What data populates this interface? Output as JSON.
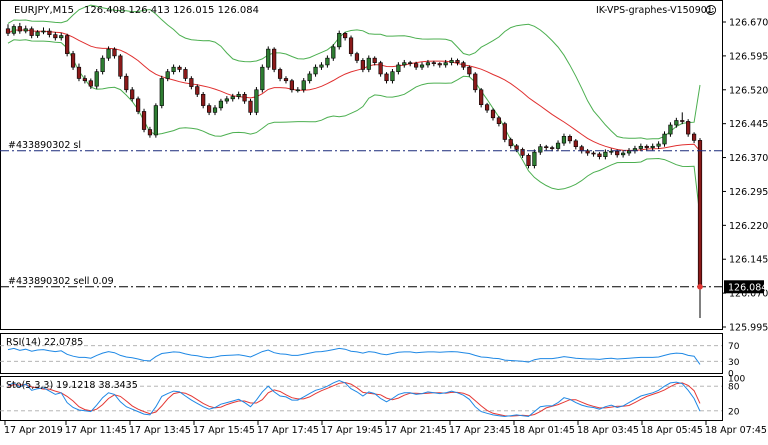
{
  "header": {
    "symbol_tf": "EURJPY,M15",
    "ohlc": "126.408 126.413 126.015 126.084",
    "watermark": "IK-VPS-graphes-V150901"
  },
  "main_pane": {
    "price_labels": [
      "126.670",
      "126.595",
      "126.520",
      "126.445",
      "126.370",
      "126.295",
      "126.220",
      "126.145",
      "126.070",
      "125.995"
    ],
    "price_values": [
      126.67,
      126.595,
      126.52,
      126.445,
      126.37,
      126.295,
      126.22,
      126.145,
      126.07,
      125.995
    ],
    "current_price": "126.084",
    "sl_label": "#433890302 sl",
    "sl_price": 126.385,
    "order_label": "#433890302 sell 0.09",
    "order_price": 126.084
  },
  "rsi_pane": {
    "title": "RSI(14) 22.0785",
    "levels": [
      "70",
      "30",
      "0"
    ]
  },
  "stoch_pane": {
    "title": "Sto(5,3,3) 19.1218 38.3435",
    "levels": [
      "100",
      "80",
      "20"
    ]
  },
  "time_axis": {
    "labels": [
      "17 Apr 2019",
      "17 Apr 11:45",
      "17 Apr 13:45",
      "17 Apr 15:45",
      "17 Apr 17:45",
      "17 Apr 19:45",
      "17 Apr 21:45",
      "17 Apr 23:45",
      "18 Apr 01:45",
      "18 Apr 03:45",
      "18 Apr 05:45",
      "18 Apr 07:45"
    ]
  },
  "colors": {
    "bull": "#2e7d32",
    "bear": "#8b1a1a",
    "ma": "#e03030",
    "bands": "#4caf50",
    "rsi": "#1e88e5",
    "stoch_main": "#1e88e5",
    "stoch_signal": "#e53935"
  },
  "chart_data": {
    "type": "candlestick",
    "opens": [
      126.655,
      126.645,
      126.66,
      126.65,
      126.655,
      126.64,
      126.648,
      126.65,
      126.642,
      126.635,
      126.64,
      126.6,
      126.57,
      126.545,
      126.54,
      126.528,
      126.56,
      126.59,
      126.61,
      126.595,
      126.55,
      126.52,
      126.5,
      126.472,
      126.432,
      126.42,
      126.485,
      126.545,
      126.56,
      126.57,
      126.565,
      126.545,
      126.527,
      126.51,
      126.485,
      126.47,
      126.48,
      126.495,
      126.5,
      126.505,
      126.51,
      126.495,
      126.47,
      126.52,
      126.57,
      126.61,
      126.565,
      126.545,
      126.54,
      126.52,
      126.52,
      126.54,
      126.555,
      126.57,
      126.575,
      126.59,
      126.615,
      126.645,
      126.635,
      126.6,
      126.585,
      126.565,
      126.59,
      126.58,
      126.555,
      126.54,
      126.56,
      126.575,
      126.58,
      126.578,
      126.57,
      126.575,
      126.58,
      126.578,
      126.575,
      126.58,
      126.585,
      126.58,
      126.57,
      126.555,
      126.52,
      126.487,
      126.475,
      126.458,
      126.445,
      126.41,
      126.396,
      126.388,
      126.375,
      126.352,
      126.382,
      126.394,
      126.392,
      126.39,
      126.402,
      126.417,
      126.407,
      126.394,
      126.385,
      126.38,
      126.378,
      126.372,
      126.382,
      126.384,
      126.376,
      126.38,
      126.385,
      126.39,
      126.395,
      126.392,
      126.395,
      126.4,
      126.422,
      126.442,
      126.452,
      126.45,
      126.422,
      126.408
    ],
    "closes": [
      126.645,
      126.66,
      126.65,
      126.655,
      126.64,
      126.648,
      126.65,
      126.642,
      126.635,
      126.64,
      126.6,
      126.57,
      126.545,
      126.54,
      126.528,
      126.56,
      126.59,
      126.61,
      126.595,
      126.55,
      126.52,
      126.5,
      126.472,
      126.432,
      126.42,
      126.485,
      126.545,
      126.56,
      126.57,
      126.565,
      126.545,
      126.527,
      126.51,
      126.485,
      126.47,
      126.48,
      126.495,
      126.5,
      126.505,
      126.51,
      126.495,
      126.47,
      126.52,
      126.57,
      126.61,
      126.565,
      126.545,
      126.54,
      126.52,
      126.52,
      126.54,
      126.555,
      126.57,
      126.575,
      126.59,
      126.615,
      126.645,
      126.635,
      126.6,
      126.585,
      126.565,
      126.59,
      126.58,
      126.555,
      126.54,
      126.56,
      126.575,
      126.58,
      126.578,
      126.57,
      126.575,
      126.58,
      126.578,
      126.575,
      126.58,
      126.585,
      126.58,
      126.57,
      126.555,
      126.52,
      126.487,
      126.475,
      126.458,
      126.445,
      126.41,
      126.396,
      126.388,
      126.375,
      126.352,
      126.382,
      126.394,
      126.392,
      126.39,
      126.402,
      126.417,
      126.407,
      126.394,
      126.385,
      126.38,
      126.378,
      126.372,
      126.382,
      126.384,
      126.376,
      126.38,
      126.385,
      126.39,
      126.395,
      126.392,
      126.395,
      126.4,
      126.422,
      126.442,
      126.452,
      126.45,
      126.422,
      126.408,
      126.084
    ],
    "highs": [
      126.665,
      126.665,
      126.668,
      126.662,
      126.66,
      126.652,
      126.658,
      126.656,
      126.648,
      126.646,
      126.644,
      126.606,
      126.578,
      126.552,
      126.545,
      126.566,
      126.596,
      126.616,
      126.614,
      126.599,
      126.556,
      126.526,
      126.505,
      126.478,
      126.438,
      126.49,
      126.551,
      126.566,
      126.576,
      126.574,
      126.57,
      126.55,
      126.532,
      126.515,
      126.49,
      126.486,
      126.5,
      126.506,
      126.511,
      126.516,
      126.515,
      126.5,
      126.526,
      126.576,
      126.616,
      126.614,
      126.569,
      126.55,
      126.544,
      126.526,
      126.546,
      126.561,
      126.576,
      126.581,
      126.596,
      126.621,
      126.651,
      126.648,
      126.64,
      126.604,
      126.59,
      126.596,
      126.594,
      126.584,
      126.559,
      126.566,
      126.581,
      126.586,
      126.584,
      126.582,
      126.581,
      126.586,
      126.584,
      126.581,
      126.586,
      126.591,
      126.589,
      126.584,
      126.574,
      126.559,
      126.524,
      126.491,
      126.479,
      126.462,
      126.449,
      126.414,
      126.4,
      126.392,
      126.379,
      126.388,
      126.4,
      126.398,
      126.396,
      126.408,
      126.423,
      126.421,
      126.411,
      126.398,
      126.389,
      126.384,
      126.382,
      126.388,
      126.39,
      126.388,
      126.386,
      126.391,
      126.396,
      126.401,
      126.399,
      126.401,
      126.406,
      126.428,
      126.448,
      126.458,
      126.47,
      126.455,
      126.426,
      126.413
    ],
    "lows": [
      126.639,
      126.64,
      126.644,
      126.645,
      126.634,
      126.635,
      126.643,
      126.636,
      126.629,
      126.629,
      126.594,
      126.564,
      126.539,
      126.534,
      126.522,
      126.522,
      126.554,
      126.584,
      126.589,
      126.544,
      126.514,
      126.494,
      126.466,
      126.426,
      126.414,
      126.414,
      126.479,
      126.539,
      126.554,
      126.559,
      126.539,
      126.521,
      126.504,
      126.479,
      126.464,
      126.464,
      126.474,
      126.489,
      126.494,
      126.499,
      126.489,
      126.464,
      126.464,
      126.514,
      126.564,
      126.559,
      126.539,
      126.534,
      126.514,
      126.514,
      126.514,
      126.534,
      126.549,
      126.564,
      126.569,
      126.584,
      126.609,
      126.629,
      126.594,
      126.579,
      126.559,
      126.559,
      126.574,
      126.549,
      126.534,
      126.534,
      126.554,
      126.569,
      126.572,
      126.564,
      126.564,
      126.569,
      126.572,
      126.569,
      126.569,
      126.574,
      126.574,
      126.564,
      126.549,
      126.514,
      126.481,
      126.469,
      126.452,
      126.439,
      126.404,
      126.39,
      126.382,
      126.369,
      126.346,
      126.346,
      126.376,
      126.386,
      126.384,
      126.384,
      126.396,
      126.401,
      126.388,
      126.379,
      126.374,
      126.372,
      126.366,
      126.366,
      126.376,
      126.37,
      126.37,
      126.374,
      126.379,
      126.384,
      126.386,
      126.386,
      126.389,
      126.394,
      126.416,
      126.436,
      126.444,
      126.416,
      126.402,
      126.015
    ],
    "rsi": [
      60,
      63,
      58,
      61,
      56,
      59,
      60,
      57,
      55,
      57,
      48,
      43,
      40,
      40,
      38,
      45,
      51,
      55,
      52,
      45,
      41,
      39,
      36,
      32,
      31,
      42,
      50,
      52,
      54,
      53,
      49,
      46,
      44,
      41,
      39,
      41,
      44,
      45,
      46,
      47,
      44,
      41,
      48,
      55,
      59,
      52,
      49,
      48,
      45,
      45,
      48,
      51,
      54,
      55,
      57,
      60,
      63,
      61,
      56,
      54,
      51,
      55,
      53,
      49,
      47,
      50,
      53,
      54,
      54,
      52,
      53,
      54,
      54,
      53,
      54,
      55,
      54,
      52,
      50,
      45,
      41,
      40,
      38,
      37,
      33,
      32,
      31,
      30,
      28,
      34,
      37,
      37,
      37,
      39,
      42,
      40,
      38,
      37,
      36,
      36,
      35,
      37,
      38,
      36,
      37,
      38,
      39,
      40,
      40,
      40,
      41,
      45,
      49,
      51,
      50,
      45,
      43,
      22
    ],
    "stoch_k": [
      82,
      88,
      78,
      85,
      70,
      74,
      76,
      68,
      60,
      64,
      40,
      28,
      22,
      20,
      18,
      34,
      52,
      64,
      60,
      42,
      30,
      24,
      18,
      12,
      10,
      30,
      55,
      62,
      68,
      66,
      56,
      46,
      38,
      30,
      24,
      28,
      36,
      40,
      44,
      48,
      40,
      30,
      46,
      66,
      80,
      66,
      56,
      54,
      46,
      46,
      54,
      62,
      70,
      74,
      80,
      88,
      94,
      88,
      74,
      66,
      56,
      66,
      62,
      50,
      42,
      50,
      60,
      64,
      64,
      60,
      62,
      66,
      64,
      62,
      64,
      68,
      64,
      58,
      48,
      30,
      18,
      14,
      10,
      8,
      6,
      8,
      10,
      8,
      6,
      18,
      30,
      32,
      32,
      40,
      52,
      48,
      40,
      34,
      30,
      28,
      24,
      30,
      34,
      28,
      32,
      40,
      48,
      56,
      60,
      64,
      70,
      80,
      88,
      90,
      86,
      70,
      50,
      19
    ],
    "stoch_d": [
      80,
      84,
      83,
      84,
      78,
      76,
      73,
      73,
      68,
      64,
      55,
      44,
      30,
      23,
      20,
      24,
      35,
      50,
      59,
      55,
      44,
      32,
      24,
      18,
      13,
      17,
      32,
      49,
      62,
      65,
      63,
      56,
      47,
      38,
      31,
      27,
      29,
      35,
      40,
      44,
      44,
      39,
      39,
      47,
      64,
      71,
      67,
      59,
      52,
      49,
      49,
      54,
      62,
      69,
      75,
      81,
      87,
      89,
      85,
      76,
      65,
      63,
      61,
      59,
      51,
      47,
      51,
      58,
      63,
      63,
      62,
      63,
      64,
      64,
      63,
      65,
      65,
      63,
      57,
      45,
      32,
      21,
      14,
      11,
      8,
      7,
      8,
      9,
      8,
      11,
      18,
      27,
      31,
      35,
      41,
      47,
      47,
      41,
      35,
      31,
      27,
      27,
      29,
      31,
      31,
      33,
      40,
      48,
      55,
      60,
      65,
      71,
      79,
      86,
      88,
      82,
      69,
      38
    ]
  }
}
